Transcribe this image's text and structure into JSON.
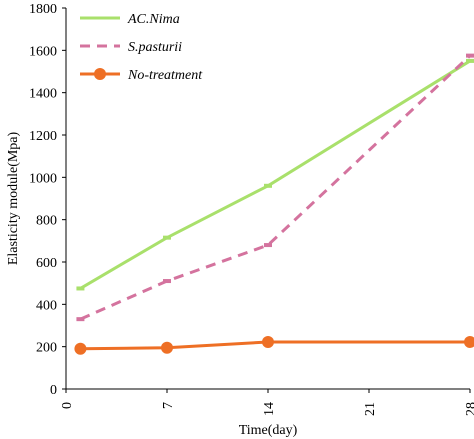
{
  "chart_data": {
    "type": "line",
    "xlabel": "Time(day)",
    "ylabel": "Elasticity module(Mpa)",
    "xlim": [
      0,
      28
    ],
    "ylim": [
      0,
      1800
    ],
    "x_ticks": [
      "0",
      "7",
      "14",
      "21",
      "28"
    ],
    "y_ticks": [
      "0",
      "200",
      "400",
      "600",
      "800",
      "1000",
      "1200",
      "1400",
      "1600",
      "1800"
    ],
    "grid": false,
    "legend": "top-left",
    "series": [
      {
        "name": "AC.Nima",
        "color": "#a9e06b",
        "style": "solid",
        "marker": "dash",
        "x": [
          1,
          7,
          14,
          28
        ],
        "y": [
          475,
          715,
          960,
          1550
        ]
      },
      {
        "name": "S.pasturii",
        "color": "#d4739e",
        "style": "dashed",
        "marker": "dash",
        "x": [
          1,
          7,
          14,
          28
        ],
        "y": [
          330,
          510,
          680,
          1575
        ]
      },
      {
        "name": "No-treatment",
        "color": "#ee6f25",
        "style": "solid",
        "marker": "circle",
        "x": [
          1,
          7,
          14,
          28
        ],
        "y": [
          190,
          195,
          222,
          222
        ]
      }
    ]
  }
}
